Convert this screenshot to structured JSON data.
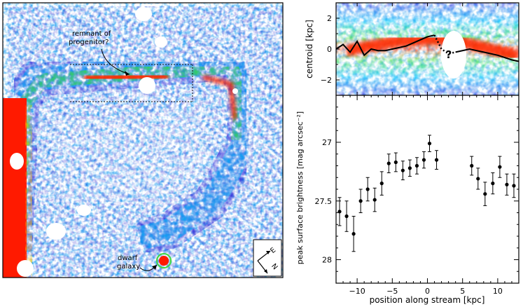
{
  "map_panel": {
    "annotation_remnant_line1": "remnant of",
    "annotation_remnant_line2": "progenitor?",
    "annotation_dwarf_line1": "dwarf",
    "annotation_dwarf_line2": "galaxy",
    "compass_north": "N",
    "compass_east": "E"
  },
  "chart_data": [
    {
      "type": "heatmap",
      "title": "",
      "ylabel": "centroid  [kpc]",
      "xlabel": "",
      "ylim": [
        -3,
        3
      ],
      "xlim": [
        -13,
        13
      ],
      "y_ticks": [
        "2",
        "0",
        "−2"
      ],
      "annotation": "?",
      "centroid_line": {
        "x": [
          -13,
          -12,
          -11,
          -10,
          -9,
          -8,
          -7,
          -6,
          -5,
          -4,
          -3,
          -2,
          -1,
          0,
          1
        ],
        "y": [
          0.0,
          0.3,
          -0.2,
          0.5,
          -0.4,
          0.0,
          -0.1,
          -0.1,
          0.0,
          0.1,
          0.2,
          0.4,
          0.6,
          0.8,
          0.9
        ]
      },
      "centroid_line_dotted": {
        "x": [
          1,
          2,
          3,
          4
        ],
        "y": [
          0.9,
          0.0,
          -0.3,
          -0.2
        ]
      },
      "centroid_line_right": {
        "x": [
          4,
          6,
          8,
          10,
          12,
          13
        ],
        "y": [
          -0.2,
          0.0,
          -0.2,
          -0.4,
          -0.7,
          -0.8
        ]
      }
    },
    {
      "type": "scatter",
      "xlabel": "position along stream [kpc]",
      "ylabel": "peak surface brightness [mag arcsec⁻²]",
      "xlim": [
        -13,
        13
      ],
      "ylim": [
        28.2,
        26.6
      ],
      "x_ticks": [
        "−10",
        "−5",
        "0",
        "5",
        "10"
      ],
      "y_ticks": [
        "27",
        "27.5",
        "28"
      ],
      "points": [
        {
          "x": -12.5,
          "y": 27.59,
          "err": 0.12
        },
        {
          "x": -11.5,
          "y": 27.63,
          "err": 0.13
        },
        {
          "x": -10.5,
          "y": 27.78,
          "err": 0.15
        },
        {
          "x": -9.5,
          "y": 27.5,
          "err": 0.1
        },
        {
          "x": -8.5,
          "y": 27.4,
          "err": 0.1
        },
        {
          "x": -7.5,
          "y": 27.49,
          "err": 0.1
        },
        {
          "x": -6.5,
          "y": 27.35,
          "err": 0.1
        },
        {
          "x": -5.5,
          "y": 27.18,
          "err": 0.08
        },
        {
          "x": -4.5,
          "y": 27.17,
          "err": 0.08
        },
        {
          "x": -3.5,
          "y": 27.24,
          "err": 0.08
        },
        {
          "x": -2.5,
          "y": 27.22,
          "err": 0.07
        },
        {
          "x": -1.5,
          "y": 27.2,
          "err": 0.07
        },
        {
          "x": -0.5,
          "y": 27.15,
          "err": 0.07
        },
        {
          "x": 0.3,
          "y": 27.01,
          "err": 0.07
        },
        {
          "x": 1.3,
          "y": 27.15,
          "err": 0.08
        },
        {
          "x": 6.3,
          "y": 27.2,
          "err": 0.08
        },
        {
          "x": 7.2,
          "y": 27.31,
          "err": 0.09
        },
        {
          "x": 8.2,
          "y": 27.44,
          "err": 0.1
        },
        {
          "x": 9.3,
          "y": 27.35,
          "err": 0.09
        },
        {
          "x": 10.3,
          "y": 27.21,
          "err": 0.09
        },
        {
          "x": 11.3,
          "y": 27.36,
          "err": 0.09
        },
        {
          "x": 12.3,
          "y": 27.37,
          "err": 0.1
        }
      ]
    }
  ]
}
